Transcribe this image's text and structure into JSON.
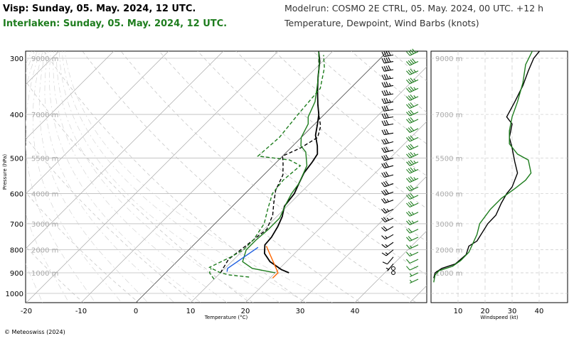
{
  "header": {
    "title_primary": "Visp: Sunday, 05. May. 2024, 12 UTC.",
    "title_secondary": "Interlaken: Sunday, 05. May. 2024, 12 UTC.",
    "model_run": "Modelrun: COSMO 2E CTRL, 05. May. 2024, 00 UTC. +12 h",
    "subtitle": "Temperature, Dewpoint, Wind Barbs (knots)",
    "primary_color": "#000000",
    "secondary_color": "#1e7d1e"
  },
  "footer": {
    "copyright": "© Meteoswiss (2024)"
  },
  "chart_data": [
    {
      "type": "line",
      "name": "skew-t diagram",
      "xlabel": "Temperature (°C)",
      "ylabel": "Pressure (hPa)",
      "x_ticks": [
        -20,
        -10,
        0,
        10,
        20,
        30,
        40
      ],
      "pressure_ticks": [
        300,
        400,
        500,
        600,
        700,
        800,
        900,
        1000
      ],
      "height_labels": [
        {
          "p": 300,
          "label": "9000 m"
        },
        {
          "p": 400,
          "label": "7000 m"
        },
        {
          "p": 500,
          "label": "5500 m"
        },
        {
          "p": 600,
          "label": "4000 m"
        },
        {
          "p": 700,
          "label": "3000 m"
        },
        {
          "p": 800,
          "label": "2000 m"
        },
        {
          "p": 900,
          "label": "1000 m"
        }
      ],
      "grid": true,
      "series": [
        {
          "color": "#000000",
          "style": "solid",
          "points": [
            [
              22.5,
              900
            ],
            [
              20.5,
              885
            ],
            [
              17,
              850
            ],
            [
              14.5,
              815
            ],
            [
              13,
              780
            ],
            [
              12.8,
              750
            ],
            [
              12,
              710
            ],
            [
              11,
              675
            ],
            [
              9.5,
              640
            ],
            [
              9,
              600
            ],
            [
              8,
              570
            ],
            [
              7,
              540
            ],
            [
              6.5,
              510
            ],
            [
              6,
              490
            ],
            [
              4.5,
              470
            ],
            [
              2.2,
              445
            ],
            [
              0.5,
              420
            ],
            [
              -1,
              400
            ],
            [
              -3,
              380
            ],
            [
              -5.5,
              355
            ],
            [
              -8,
              330
            ],
            [
              -10.5,
              305
            ],
            [
              -12.5,
              290
            ]
          ]
        },
        {
          "color": "#000000",
          "style": "dashed",
          "points": [
            [
              10,
              900
            ],
            [
              9.5,
              870
            ],
            [
              9,
              840
            ],
            [
              9.5,
              800
            ],
            [
              10,
              760
            ],
            [
              10.5,
              720
            ],
            [
              9,
              670
            ],
            [
              7,
              630
            ],
            [
              5,
              590
            ],
            [
              3.5,
              545
            ],
            [
              1.5,
              515
            ],
            [
              0,
              495
            ],
            [
              1.8,
              475
            ],
            [
              3,
              450
            ],
            [
              1.5,
              425
            ],
            [
              -0.5,
              405
            ],
            [
              -3,
              380
            ],
            [
              -6.5,
              345
            ],
            [
              -9.5,
              315
            ],
            [
              -12.5,
              290
            ]
          ]
        },
        {
          "color": "#1e7d1e",
          "style": "solid",
          "points": [
            [
              20,
              900
            ],
            [
              15,
              880
            ],
            [
              12,
              850
            ],
            [
              10.5,
              800
            ],
            [
              10.5,
              760
            ],
            [
              10.8,
              720
            ],
            [
              10.8,
              680
            ],
            [
              9.3,
              630
            ],
            [
              8.5,
              600
            ],
            [
              8,
              570
            ],
            [
              6.2,
              520
            ],
            [
              3.5,
              485
            ],
            [
              1.5,
              470
            ],
            [
              0,
              450
            ],
            [
              -1.2,
              420
            ],
            [
              -2.5,
              405
            ],
            [
              -4,
              375
            ],
            [
              -7,
              340
            ],
            [
              -10,
              310
            ],
            [
              -12.5,
              290
            ]
          ]
        },
        {
          "color": "#1e7d1e",
          "style": "dashed",
          "points": [
            [
              16,
              920
            ],
            [
              12,
              910
            ],
            [
              10,
              900
            ],
            [
              7,
              875
            ],
            [
              9,
              830
            ],
            [
              10,
              800
            ],
            [
              10,
              760
            ],
            [
              9,
              700
            ],
            [
              7,
              650
            ],
            [
              5,
              600
            ],
            [
              4.5,
              560
            ],
            [
              5,
              520
            ],
            [
              2,
              505
            ],
            [
              -4.5,
              495
            ],
            [
              -4,
              450
            ],
            [
              -4.8,
              400
            ],
            [
              -5.5,
              350
            ],
            [
              -8.5,
              315
            ],
            [
              -11,
              295
            ]
          ]
        },
        {
          "color": "#1e7d1e",
          "style": "dashed",
          "points": [
            [
              10,
              930
            ],
            [
              9,
              915
            ],
            [
              8,
              900
            ],
            [
              7.5,
              880
            ]
          ]
        },
        {
          "color": "#ff6600",
          "style": "solid",
          "points": [
            [
              13.5,
              785
            ],
            [
              20.5,
              900
            ],
            [
              20.5,
              925
            ]
          ]
        },
        {
          "color": "#2060e0",
          "style": "solid",
          "points": [
            [
              12.2,
              790
            ],
            [
              10.5,
              880
            ],
            [
              11,
              895
            ]
          ]
        }
      ]
    },
    {
      "type": "line",
      "name": "wind profile",
      "xlabel": "Windspeed (kt)",
      "x_ticks": [
        10,
        20,
        30,
        40
      ],
      "height_labels": [
        "9000 m",
        "7000 m",
        "5500 m",
        "4000 m",
        "3000 m",
        "2000 m",
        "1000 m"
      ],
      "grid": true,
      "series": [
        {
          "color": "#000000",
          "points": [
            [
              1,
              925
            ],
            [
              1.5,
              900
            ],
            [
              4,
              880
            ],
            [
              9,
              860
            ],
            [
              13,
              820
            ],
            [
              14,
              785
            ],
            [
              17,
              765
            ],
            [
              21,
              700
            ],
            [
              24,
              670
            ],
            [
              26,
              630
            ],
            [
              28,
              600
            ],
            [
              30,
              580
            ],
            [
              32,
              540
            ],
            [
              31,
              510
            ],
            [
              30,
              475
            ],
            [
              29,
              450
            ],
            [
              30,
              420
            ],
            [
              28,
              405
            ],
            [
              31,
              375
            ],
            [
              34,
              345
            ],
            [
              36,
              320
            ],
            [
              38,
              300
            ],
            [
              41,
              285
            ]
          ]
        },
        {
          "color": "#1e7d1e",
          "points": [
            [
              1,
              945
            ],
            [
              1.5,
              910
            ],
            [
              3,
              890
            ],
            [
              8,
              870
            ],
            [
              11,
              845
            ],
            [
              14,
              810
            ],
            [
              17,
              740
            ],
            [
              18,
              700
            ],
            [
              22,
              650
            ],
            [
              26,
              615
            ],
            [
              31,
              585
            ],
            [
              35,
              560
            ],
            [
              37,
              540
            ],
            [
              36,
              505
            ],
            [
              32,
              490
            ],
            [
              29,
              465
            ],
            [
              29,
              435
            ],
            [
              30,
              405
            ],
            [
              32,
              375
            ],
            [
              34,
              340
            ],
            [
              35,
              310
            ],
            [
              38,
              285
            ],
            [
              40,
              280
            ]
          ]
        }
      ]
    }
  ],
  "wind_barbs": {
    "black_column": [
      {
        "p": 295,
        "speed": 40,
        "dir": 260
      },
      {
        "p": 305,
        "speed": 40,
        "dir": 260
      },
      {
        "p": 318,
        "speed": 40,
        "dir": 260
      },
      {
        "p": 332,
        "speed": 35,
        "dir": 260
      },
      {
        "p": 345,
        "speed": 35,
        "dir": 260
      },
      {
        "p": 360,
        "speed": 35,
        "dir": 260
      },
      {
        "p": 375,
        "speed": 35,
        "dir": 260
      },
      {
        "p": 390,
        "speed": 30,
        "dir": 260
      },
      {
        "p": 405,
        "speed": 30,
        "dir": 260
      },
      {
        "p": 420,
        "speed": 30,
        "dir": 260
      },
      {
        "p": 440,
        "speed": 30,
        "dir": 260
      },
      {
        "p": 460,
        "speed": 30,
        "dir": 255
      },
      {
        "p": 480,
        "speed": 30,
        "dir": 255
      },
      {
        "p": 500,
        "speed": 30,
        "dir": 255
      },
      {
        "p": 520,
        "speed": 30,
        "dir": 255
      },
      {
        "p": 545,
        "speed": 30,
        "dir": 255
      },
      {
        "p": 570,
        "speed": 30,
        "dir": 250
      },
      {
        "p": 595,
        "speed": 30,
        "dir": 250
      },
      {
        "p": 620,
        "speed": 25,
        "dir": 250
      },
      {
        "p": 650,
        "speed": 25,
        "dir": 245
      },
      {
        "p": 680,
        "speed": 25,
        "dir": 245
      },
      {
        "p": 710,
        "speed": 20,
        "dir": 240
      },
      {
        "p": 740,
        "speed": 15,
        "dir": 240
      },
      {
        "p": 770,
        "speed": 15,
        "dir": 235
      },
      {
        "p": 800,
        "speed": 15,
        "dir": 230
      },
      {
        "p": 830,
        "speed": 10,
        "dir": 220
      },
      {
        "p": 860,
        "speed": 5,
        "dir": 220
      },
      {
        "p": 880,
        "speed": 0,
        "dir": 0
      },
      {
        "p": 900,
        "speed": 0,
        "dir": 0
      }
    ],
    "green_column": [
      {
        "p": 290,
        "speed": 40,
        "dir": 245
      },
      {
        "p": 305,
        "speed": 40,
        "dir": 245
      },
      {
        "p": 320,
        "speed": 35,
        "dir": 245
      },
      {
        "p": 335,
        "speed": 35,
        "dir": 245
      },
      {
        "p": 350,
        "speed": 35,
        "dir": 245
      },
      {
        "p": 365,
        "speed": 35,
        "dir": 245
      },
      {
        "p": 380,
        "speed": 30,
        "dir": 245
      },
      {
        "p": 395,
        "speed": 30,
        "dir": 245
      },
      {
        "p": 410,
        "speed": 30,
        "dir": 245
      },
      {
        "p": 430,
        "speed": 30,
        "dir": 245
      },
      {
        "p": 450,
        "speed": 30,
        "dir": 245
      },
      {
        "p": 470,
        "speed": 30,
        "dir": 245
      },
      {
        "p": 490,
        "speed": 35,
        "dir": 245
      },
      {
        "p": 510,
        "speed": 35,
        "dir": 245
      },
      {
        "p": 530,
        "speed": 35,
        "dir": 245
      },
      {
        "p": 555,
        "speed": 35,
        "dir": 245
      },
      {
        "p": 580,
        "speed": 30,
        "dir": 245
      },
      {
        "p": 605,
        "speed": 30,
        "dir": 245
      },
      {
        "p": 630,
        "speed": 30,
        "dir": 245
      },
      {
        "p": 660,
        "speed": 25,
        "dir": 245
      },
      {
        "p": 690,
        "speed": 25,
        "dir": 245
      },
      {
        "p": 720,
        "speed": 20,
        "dir": 245
      },
      {
        "p": 750,
        "speed": 20,
        "dir": 245
      },
      {
        "p": 780,
        "speed": 15,
        "dir": 245
      },
      {
        "p": 810,
        "speed": 15,
        "dir": 245
      },
      {
        "p": 840,
        "speed": 10,
        "dir": 245
      },
      {
        "p": 870,
        "speed": 10,
        "dir": 245
      },
      {
        "p": 900,
        "speed": 5,
        "dir": 245
      },
      {
        "p": 930,
        "speed": 5,
        "dir": 245
      }
    ]
  }
}
